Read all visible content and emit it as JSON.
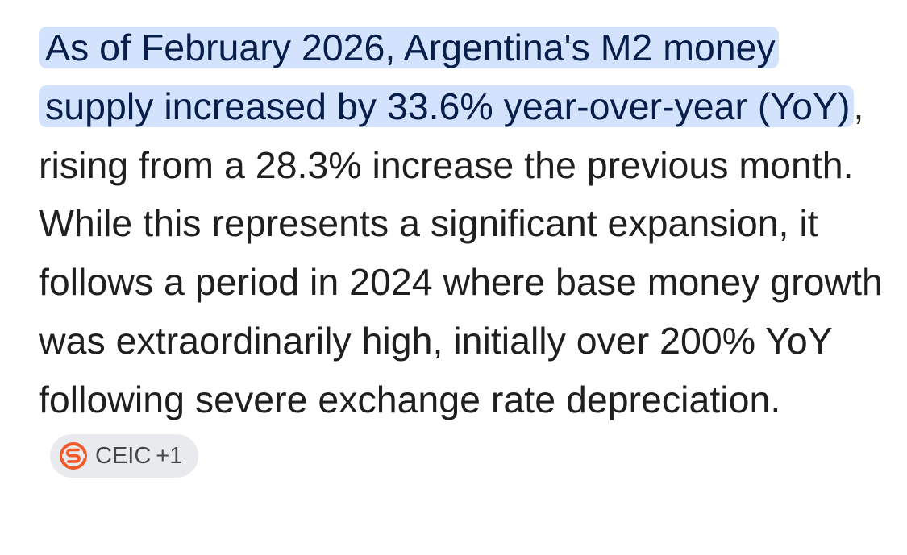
{
  "answer": {
    "highlighted_text": "As of February 2026, Argentina's M2 money supply increased by 33.6% year-over-year (YoY)",
    "body_text": ", rising from a 28.3% increase the previous month. While this represents a significant expansion, it follows a period in 2024 where base money growth was extraordinarily high, initially over 200% YoY following severe exchange rate depreciation.",
    "highlight_color": "#d3e3fd"
  },
  "source_chip": {
    "label": "CEIC",
    "extra_count": "+1",
    "logo_icon": "ceic-logo-icon",
    "logo_color": "#f05a28"
  }
}
